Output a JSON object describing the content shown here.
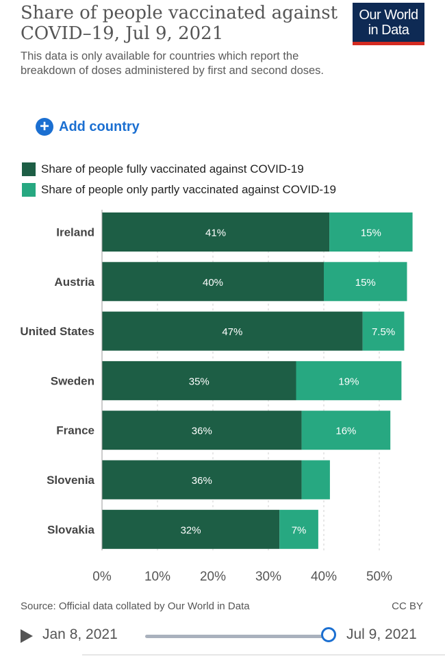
{
  "header": {
    "title": "Share of people vaccinated against COVID–19, Jul 9, 2021",
    "subtitle": "This data is only available for countries which report the breakdown of doses administered by first and second doses.",
    "logo_line1": "Our World",
    "logo_line2": "in Data"
  },
  "controls": {
    "add_country_label": "Add country"
  },
  "legend": {
    "items": [
      {
        "label": "Share of people fully vaccinated against COVID-19",
        "color": "#1d5e45"
      },
      {
        "label": "Share of people only partly vaccinated against COVID-19",
        "color": "#27a881"
      }
    ]
  },
  "chart_data": {
    "type": "bar",
    "orientation": "horizontal",
    "stacked": true,
    "title": "Share of people vaccinated against COVID–19, Jul 9, 2021",
    "categories": [
      "Ireland",
      "Austria",
      "United States",
      "Sweden",
      "France",
      "Slovenia",
      "Slovakia"
    ],
    "series": [
      {
        "name": "Share of people fully vaccinated against COVID-19",
        "color": "#1d5e45",
        "values": [
          41,
          40,
          47,
          35,
          36,
          36,
          32
        ],
        "labels": [
          "41%",
          "40%",
          "47%",
          "35%",
          "36%",
          "36%",
          "32%"
        ]
      },
      {
        "name": "Share of people only partly vaccinated against COVID-19",
        "color": "#27a881",
        "values": [
          15,
          15,
          7.5,
          19,
          16,
          5.1,
          7
        ],
        "labels": [
          "15%",
          "15%",
          "7.5%",
          "19%",
          "16%",
          "",
          "7%"
        ]
      }
    ],
    "xticks": [
      0,
      10,
      20,
      30,
      40,
      50
    ],
    "xtick_labels": [
      "0%",
      "10%",
      "20%",
      "30%",
      "40%",
      "50%"
    ],
    "xlim": [
      0,
      56
    ],
    "grid": true
  },
  "footer": {
    "source": "Source: Official data collated by Our World in Data",
    "license": "CC BY"
  },
  "timeline": {
    "start_date": "Jan 8, 2021",
    "end_date": "Jul 9, 2021",
    "position": 1.0
  }
}
